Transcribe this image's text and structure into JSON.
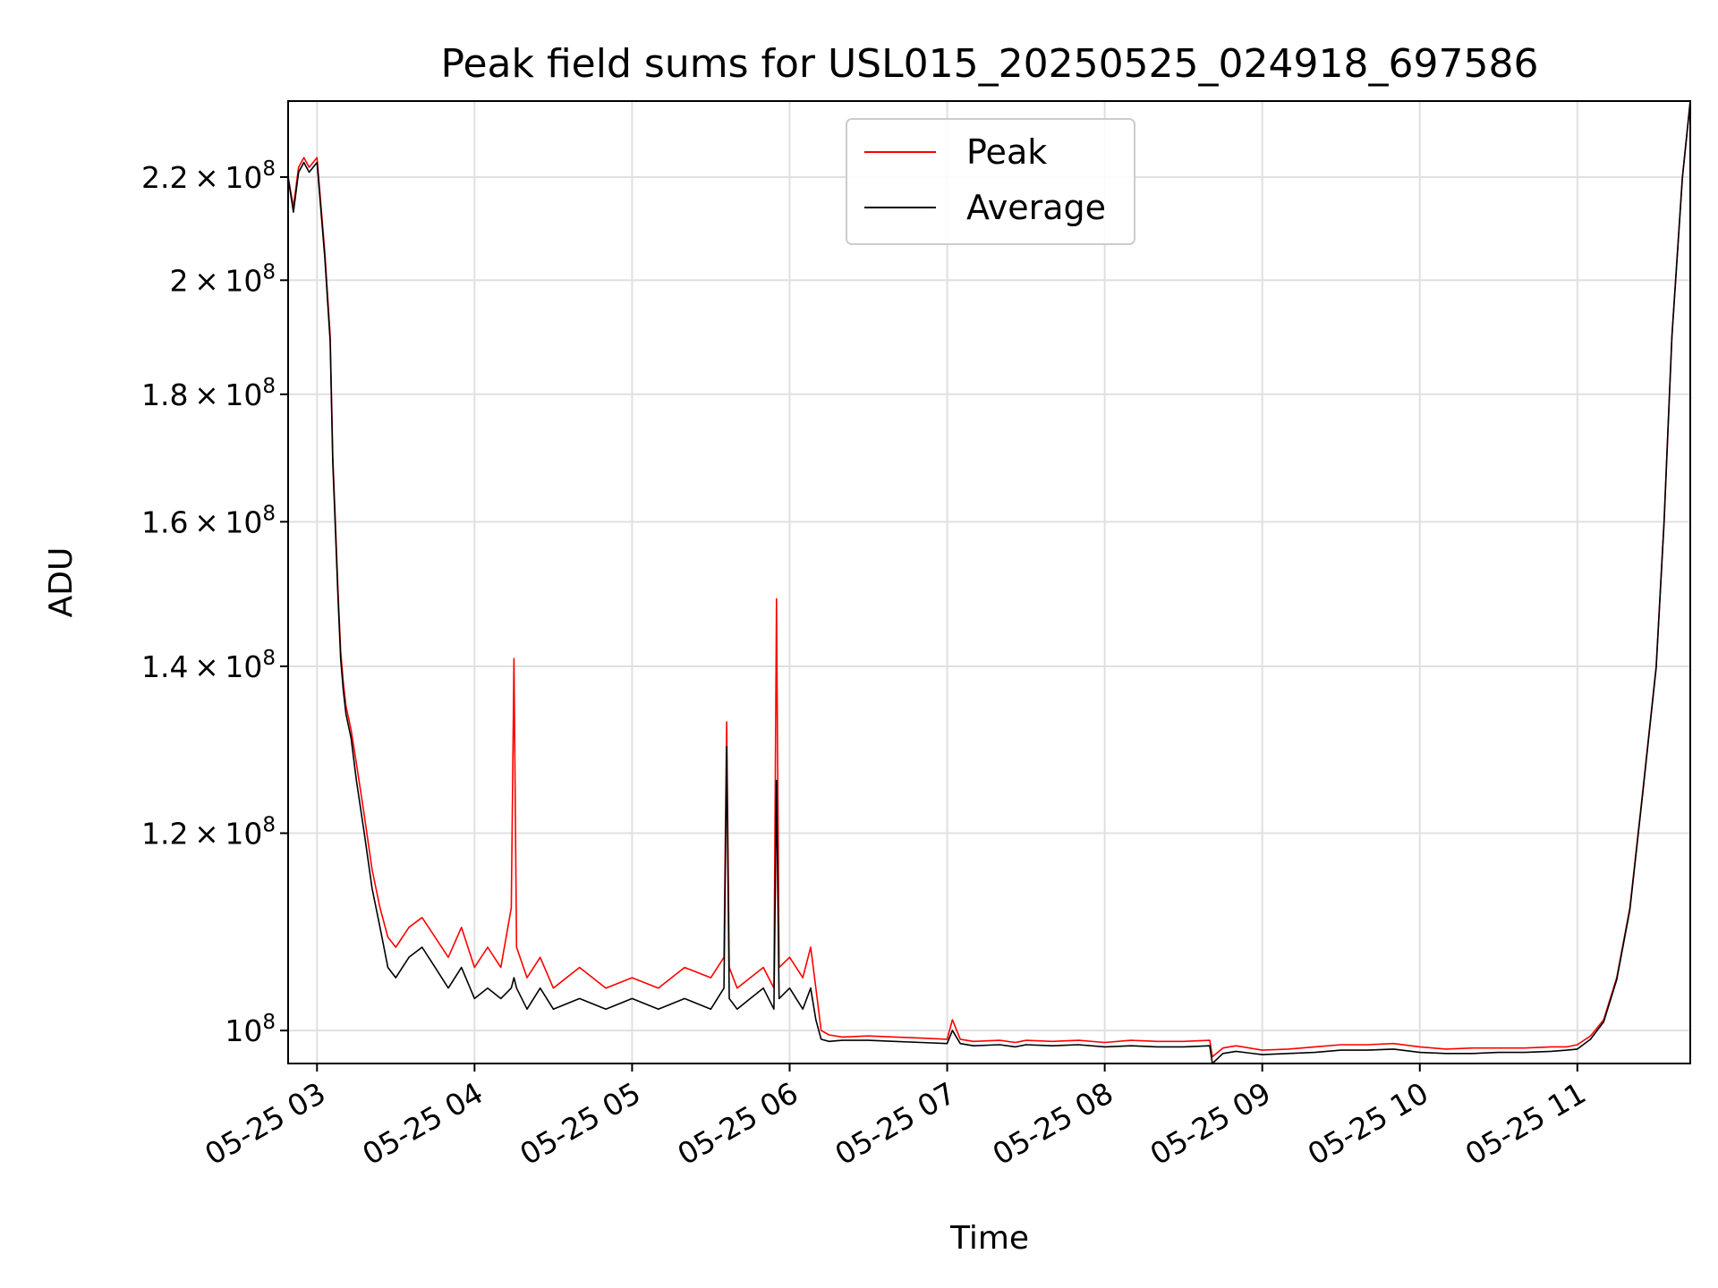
{
  "chart_data": {
    "type": "line",
    "title": "Peak field sums for USL015_20250525_024918_697586",
    "xlabel": "Time",
    "ylabel": "ADU",
    "xlim": [
      "05-25 02:49",
      "05-25 11:43"
    ],
    "ylim": [
      97000000,
      236000000
    ],
    "yscale": "log",
    "grid": true,
    "legend_position": "upper center",
    "x_ticks": [
      "05-25 03",
      "05-25 04",
      "05-25 05",
      "05-25 06",
      "05-25 07",
      "05-25 08",
      "05-25 09",
      "05-25 10",
      "05-25 11"
    ],
    "y_ticks": [
      {
        "value": 100000000,
        "mantissa": "",
        "exp": "8"
      },
      {
        "value": 120000000,
        "mantissa": "1.2",
        "exp": "8"
      },
      {
        "value": 140000000,
        "mantissa": "1.4",
        "exp": "8"
      },
      {
        "value": 160000000,
        "mantissa": "1.6",
        "exp": "8"
      },
      {
        "value": 180000000,
        "mantissa": "1.8",
        "exp": "8"
      },
      {
        "value": 200000000,
        "mantissa": "2",
        "exp": "8"
      },
      {
        "value": 220000000,
        "mantissa": "2.2",
        "exp": "8"
      }
    ],
    "series": [
      {
        "name": "Peak",
        "color": "#ff0000",
        "x": [
          "05-25 02:49",
          "05-25 02:51",
          "05-25 02:53",
          "05-25 02:55",
          "05-25 02:57",
          "05-25 03:00",
          "05-25 03:03",
          "05-25 03:05",
          "05-25 03:06",
          "05-25 03:07",
          "05-25 03:08",
          "05-25 03:09",
          "05-25 03:10",
          "05-25 03:11",
          "05-25 03:13",
          "05-25 03:15",
          "05-25 03:18",
          "05-25 03:21",
          "05-25 03:24",
          "05-25 03:27",
          "05-25 03:30",
          "05-25 03:35",
          "05-25 03:40",
          "05-25 03:45",
          "05-25 03:50",
          "05-25 03:55",
          "05-25 04:00",
          "05-25 04:05",
          "05-25 04:10",
          "05-25 04:14",
          "05-25 04:15",
          "05-25 04:16",
          "05-25 04:20",
          "05-25 04:25",
          "05-25 04:30",
          "05-25 04:40",
          "05-25 04:50",
          "05-25 05:00",
          "05-25 05:10",
          "05-25 05:20",
          "05-25 05:30",
          "05-25 05:35",
          "05-25 05:36",
          "05-25 05:37",
          "05-25 05:40",
          "05-25 05:45",
          "05-25 05:50",
          "05-25 05:54",
          "05-25 05:55",
          "05-25 05:56",
          "05-25 06:00",
          "05-25 06:05",
          "05-25 06:08",
          "05-25 06:10",
          "05-25 06:12",
          "05-25 06:15",
          "05-25 06:20",
          "05-25 06:30",
          "05-25 06:40",
          "05-25 06:50",
          "05-25 07:00",
          "05-25 07:02",
          "05-25 07:05",
          "05-25 07:10",
          "05-25 07:20",
          "05-25 07:26",
          "05-25 07:30",
          "05-25 07:40",
          "05-25 07:50",
          "05-25 08:00",
          "05-25 08:10",
          "05-25 08:20",
          "05-25 08:30",
          "05-25 08:40",
          "05-25 08:41",
          "05-25 08:45",
          "05-25 08:50",
          "05-25 09:00",
          "05-25 09:10",
          "05-25 09:20",
          "05-25 09:30",
          "05-25 09:40",
          "05-25 09:50",
          "05-25 10:00",
          "05-25 10:10",
          "05-25 10:20",
          "05-25 10:30",
          "05-25 10:40",
          "05-25 10:50",
          "05-25 10:56",
          "05-25 11:00",
          "05-25 11:05",
          "05-25 11:10",
          "05-25 11:15",
          "05-25 11:20",
          "05-25 11:25",
          "05-25 11:30",
          "05-25 11:33",
          "05-25 11:36",
          "05-25 11:40",
          "05-25 11:43"
        ],
        "y": [
          220000000,
          214000000,
          222000000,
          224000000,
          222000000,
          224000000,
          205000000,
          190000000,
          170000000,
          160000000,
          150000000,
          142000000,
          138000000,
          135000000,
          132000000,
          128000000,
          122000000,
          116000000,
          112000000,
          109000000,
          108000000,
          110000000,
          111000000,
          109000000,
          107000000,
          110000000,
          106000000,
          108000000,
          106000000,
          112000000,
          141000000,
          108000000,
          105000000,
          107000000,
          104000000,
          106000000,
          104000000,
          105000000,
          104000000,
          106000000,
          105000000,
          107000000,
          133000000,
          106000000,
          104000000,
          105000000,
          106000000,
          104000000,
          149000000,
          106000000,
          107000000,
          105000000,
          108000000,
          104000000,
          100000000,
          99600000,
          99400000,
          99500000,
          99400000,
          99300000,
          99200000,
          101000000,
          99200000,
          99000000,
          99100000,
          98900000,
          99100000,
          99000000,
          99100000,
          98900000,
          99100000,
          99000000,
          99000000,
          99100000,
          97600000,
          98400000,
          98600000,
          98200000,
          98300000,
          98500000,
          98700000,
          98700000,
          98800000,
          98500000,
          98300000,
          98400000,
          98400000,
          98400000,
          98500000,
          98500000,
          98700000,
          99500000,
          101000000,
          105000000,
          112000000,
          125000000,
          140000000,
          160000000,
          190000000,
          220000000,
          236000000
        ]
      },
      {
        "name": "Average",
        "color": "#000000",
        "x": [
          "05-25 02:49",
          "05-25 02:51",
          "05-25 02:53",
          "05-25 02:55",
          "05-25 02:57",
          "05-25 03:00",
          "05-25 03:03",
          "05-25 03:05",
          "05-25 03:06",
          "05-25 03:07",
          "05-25 03:08",
          "05-25 03:09",
          "05-25 03:10",
          "05-25 03:11",
          "05-25 03:13",
          "05-25 03:15",
          "05-25 03:18",
          "05-25 03:21",
          "05-25 03:24",
          "05-25 03:27",
          "05-25 03:30",
          "05-25 03:35",
          "05-25 03:40",
          "05-25 03:45",
          "05-25 03:50",
          "05-25 03:55",
          "05-25 04:00",
          "05-25 04:05",
          "05-25 04:10",
          "05-25 04:14",
          "05-25 04:15",
          "05-25 04:16",
          "05-25 04:20",
          "05-25 04:25",
          "05-25 04:30",
          "05-25 04:40",
          "05-25 04:50",
          "05-25 05:00",
          "05-25 05:10",
          "05-25 05:20",
          "05-25 05:30",
          "05-25 05:35",
          "05-25 05:36",
          "05-25 05:37",
          "05-25 05:40",
          "05-25 05:45",
          "05-25 05:50",
          "05-25 05:54",
          "05-25 05:55",
          "05-25 05:56",
          "05-25 06:00",
          "05-25 06:05",
          "05-25 06:08",
          "05-25 06:10",
          "05-25 06:12",
          "05-25 06:15",
          "05-25 06:20",
          "05-25 06:30",
          "05-25 06:40",
          "05-25 06:50",
          "05-25 07:00",
          "05-25 07:02",
          "05-25 07:05",
          "05-25 07:10",
          "05-25 07:20",
          "05-25 07:26",
          "05-25 07:30",
          "05-25 07:40",
          "05-25 07:50",
          "05-25 08:00",
          "05-25 08:10",
          "05-25 08:20",
          "05-25 08:30",
          "05-25 08:40",
          "05-25 08:41",
          "05-25 08:45",
          "05-25 08:50",
          "05-25 09:00",
          "05-25 09:10",
          "05-25 09:20",
          "05-25 09:30",
          "05-25 09:40",
          "05-25 09:50",
          "05-25 10:00",
          "05-25 10:10",
          "05-25 10:20",
          "05-25 10:30",
          "05-25 10:40",
          "05-25 10:50",
          "05-25 10:56",
          "05-25 11:00",
          "05-25 11:05",
          "05-25 11:10",
          "05-25 11:15",
          "05-25 11:20",
          "05-25 11:25",
          "05-25 11:30",
          "05-25 11:33",
          "05-25 11:36",
          "05-25 11:40",
          "05-25 11:43"
        ],
        "y": [
          220000000,
          213000000,
          221000000,
          223000000,
          221000000,
          223000000,
          204000000,
          189000000,
          169000000,
          159000000,
          149000000,
          141000000,
          137000000,
          134000000,
          131000000,
          126000000,
          120000000,
          114000000,
          110000000,
          106000000,
          105000000,
          107000000,
          108000000,
          106000000,
          104000000,
          106000000,
          103000000,
          104000000,
          103000000,
          104000000,
          105000000,
          104000000,
          102000000,
          104000000,
          102000000,
          103000000,
          102000000,
          103000000,
          102000000,
          103000000,
          102000000,
          104000000,
          130000000,
          103000000,
          102000000,
          103000000,
          104000000,
          102000000,
          126000000,
          103000000,
          104000000,
          102000000,
          104000000,
          101000000,
          99200000,
          99000000,
          99100000,
          99100000,
          99000000,
          98900000,
          98800000,
          100000000,
          98800000,
          98600000,
          98700000,
          98500000,
          98700000,
          98600000,
          98700000,
          98500000,
          98600000,
          98500000,
          98500000,
          98600000,
          97000000,
          97900000,
          98100000,
          97800000,
          97900000,
          98000000,
          98200000,
          98200000,
          98300000,
          98000000,
          97900000,
          97900000,
          98000000,
          98000000,
          98100000,
          98200000,
          98300000,
          99200000,
          100800000,
          104800000,
          111800000,
          124800000,
          139800000,
          159800000,
          189800000,
          219800000,
          236000000
        ]
      }
    ]
  }
}
